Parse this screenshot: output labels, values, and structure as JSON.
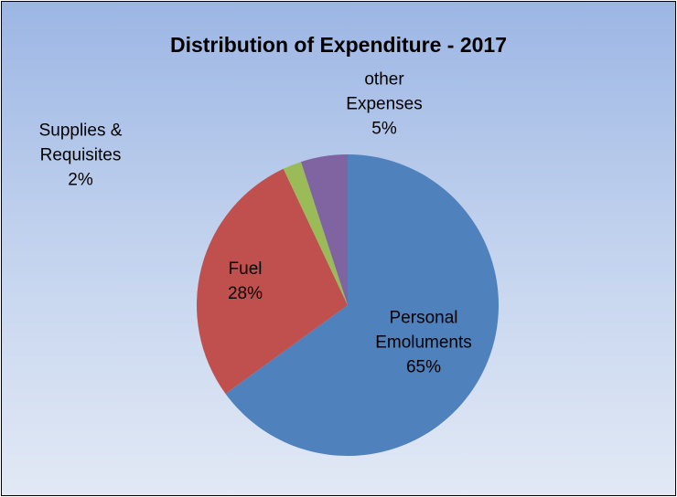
{
  "chart_data": {
    "type": "pie",
    "title": "Distribution of Expenditure - 2017",
    "categories": [
      "Personal Emoluments",
      "Fuel",
      "Supplies & Requisites",
      "other Expenses"
    ],
    "values": [
      65,
      28,
      2,
      5
    ],
    "value_labels": [
      "65%",
      "28%",
      "2%",
      "5%"
    ],
    "colors": [
      "#4f81bd",
      "#c0504d",
      "#9bbb59",
      "#8064a2"
    ]
  }
}
